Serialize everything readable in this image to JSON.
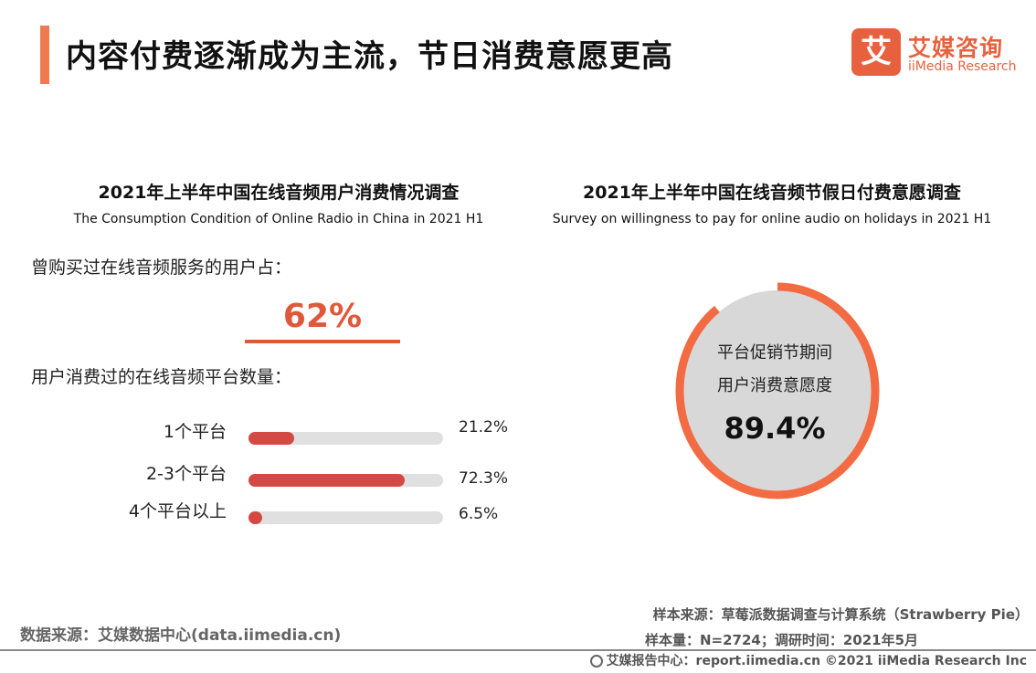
{
  "header": {
    "title": "内容付费逐渐成为主流，节日消费意愿更高",
    "logo_glyph": "艾",
    "logo_cn": "艾媒咨询",
    "logo_en": "iiMedia Research"
  },
  "left_panel": {
    "title_cn": "2021年上半年中国在线音频用户消费情况调查",
    "title_en": "The Consumption Condition of Online Radio in China in 2021 H1",
    "question1": "曾购买过在线音频服务的用户占：",
    "question1_value": "62%",
    "question2": "用户消费过的在线音频平台数量："
  },
  "right_panel": {
    "title_cn": "2021年上半年中国在线音频节假日付费意愿调查",
    "title_en": "Survey on willingness to pay for online audio on holidays in 2021 H1",
    "donut_label1": "平台促销节期间",
    "donut_label2": "用户消费意愿度",
    "donut_value": "89.4%"
  },
  "chart_data": [
    {
      "type": "bar",
      "orientation": "horizontal",
      "categories": [
        "1个平台",
        "2-3个平台",
        "4个平台以上"
      ],
      "values": [
        21.2,
        72.3,
        6.5
      ],
      "value_labels": [
        "21.2%",
        "72.3%",
        "6.5%"
      ],
      "xlim": [
        0,
        90
      ],
      "colors": {
        "fill": "#d34a44",
        "track": "#e0e0e0"
      }
    },
    {
      "type": "pie",
      "style": "donut",
      "values": [
        89.4
      ],
      "colors": {
        "ring": "#f26b43",
        "center": "#d8d8d8",
        "rest": "#ffffff"
      }
    }
  ],
  "footer": {
    "data_source": "数据来源：艾媒数据中心(data.iimedia.cn)",
    "sample_source": "样本来源：草莓派数据调查与计算系统（Strawberry Pie）",
    "sample_size": "样本量：N=2724；调研时间：2021年5月",
    "copyright": "艾媒报告中心：report.iimedia.cn  ©2021  iiMedia Research  Inc"
  },
  "colors": {
    "accent": "#f07a4f",
    "brand": "#e8613e",
    "highlight": "#e0583a"
  }
}
